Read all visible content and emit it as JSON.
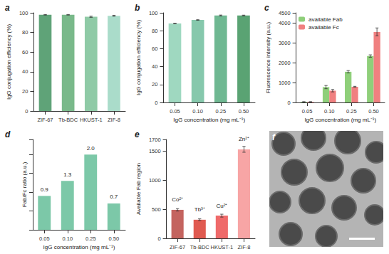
{
  "chart_data": [
    {
      "type": "bar",
      "title": "a",
      "categories": [
        "ZIF-67",
        "Tb-BDC",
        "HKUST-1",
        "ZIF-8"
      ],
      "values": [
        98,
        98,
        96,
        97
      ],
      "errors": [
        0.3,
        0.3,
        0.6,
        0.5
      ],
      "colors": [
        "#5fa378",
        "#79b98a",
        "#8fcaa6",
        "#aadcca"
      ],
      "y_label": "IgG conjugation efficiency (%)",
      "ylim": [
        0,
        100
      ],
      "yticks": [
        0,
        20,
        40,
        60,
        80,
        100
      ],
      "grid": false
    },
    {
      "type": "bar",
      "title": "b",
      "categories": [
        "0.05",
        "0.10",
        "0.25",
        "0.50"
      ],
      "values": [
        88,
        92,
        97,
        97
      ],
      "errors": [
        0.3,
        0.3,
        0.5,
        0.4
      ],
      "colors": [
        "#9fd8c0",
        "#86c8ac",
        "#6fb892",
        "#5aa373"
      ],
      "x_label": "IgG concentration (mg mL⁻¹)",
      "y_label": "IgG conjugation efficiency (%)",
      "ylim": [
        0,
        100
      ],
      "yticks": [
        0,
        20,
        40,
        60,
        80,
        100
      ],
      "grid": false
    },
    {
      "type": "bar",
      "title": "c",
      "categories": [
        "0.05",
        "0.10",
        "0.25",
        "0.50"
      ],
      "series": [
        {
          "name": "available Fab",
          "color": "#8fcf7a",
          "values": [
            30,
            770,
            1540,
            2330
          ],
          "errors": [
            10,
            80,
            60,
            60
          ]
        },
        {
          "name": "available Fc",
          "color": "#f08080",
          "values": [
            30,
            590,
            790,
            3540
          ],
          "errors": [
            10,
            60,
            20,
            200
          ]
        }
      ],
      "legend": "top-left",
      "x_label": "IgG concentration (mg mL⁻¹)",
      "y_label": "Fluorescence intensity (a.u.)",
      "ylim": [
        0,
        4500
      ],
      "yticks": [
        0,
        1000,
        2000,
        3000,
        4000
      ],
      "grid": false
    },
    {
      "type": "bar",
      "title": "d",
      "categories": [
        "0.05",
        "0.10",
        "0.25",
        "0.50"
      ],
      "values": [
        0.9,
        1.3,
        2.0,
        0.7
      ],
      "value_labels": [
        "0.9",
        "1.3",
        "2.0",
        "0.7"
      ],
      "data_labels": true,
      "color": "#7cc8a8",
      "x_label": "IgG concentration (mg mL⁻¹)",
      "y_label": "Fab/Fc ratio (a.u.)",
      "ylim": [
        0,
        2.4
      ],
      "yticks": [
        0,
        0.5,
        1,
        1.5,
        2
      ],
      "tick_labels": "x",
      "grid": false
    },
    {
      "type": "bar",
      "title": "e",
      "categories": [
        "ZIF-67",
        "Tb-BDC",
        "HKUST-1",
        "ZIF-8"
      ],
      "values": [
        490,
        320,
        390,
        1530
      ],
      "errors": [
        20,
        15,
        25,
        50
      ],
      "annotations": [
        "Co²⁺",
        "Tb³⁺",
        "Cu²⁺",
        "Zn²⁺"
      ],
      "colors": [
        "#c4645f",
        "#e05a50",
        "#ef6a6a",
        "#f7a5a5"
      ],
      "y_label": "Available Fab region",
      "ylim": [
        0,
        1700
      ],
      "yticks": [
        0,
        500,
        1000,
        1500
      ],
      "grid": false
    }
  ],
  "image": {
    "label": "f"
  }
}
